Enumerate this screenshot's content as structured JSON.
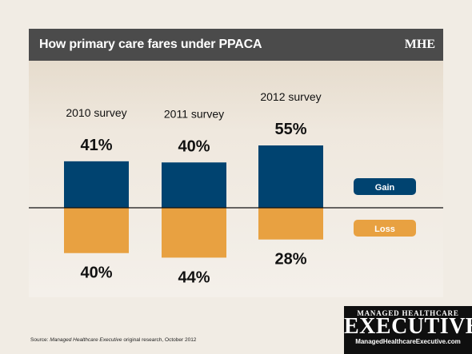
{
  "header": {
    "title": "How primary care fares under PPACA",
    "brand": "MHE"
  },
  "colors": {
    "gain": "#004370",
    "loss": "#e8a141",
    "header_bg": "#4b4b4b"
  },
  "chart_data": {
    "type": "bar",
    "title": "How primary care fares under PPACA",
    "categories": [
      "2010 survey",
      "2011 survey",
      "2012 survey"
    ],
    "series": [
      {
        "name": "Gain",
        "values": [
          41,
          40,
          55
        ]
      },
      {
        "name": "Loss",
        "values": [
          40,
          44,
          28
        ]
      }
    ],
    "value_labels": {
      "gain": [
        "41%",
        "40%",
        "55%"
      ],
      "loss": [
        "40%",
        "44%",
        "28%"
      ]
    },
    "legend": {
      "gain": "Gain",
      "loss": "Loss",
      "position": "right"
    },
    "layout": "diverging bars: gain above axis, loss below axis",
    "ylim": [
      -60,
      60
    ]
  },
  "source": {
    "prefix": "Source: ",
    "italic": "Managed Healthcare Executive",
    "suffix": " original research, October 2012"
  },
  "logo": {
    "line1": "MANAGED HEALTHCARE",
    "line2": "EXECUTIVE",
    "line3": "ManagedHealthcareExecutive.com"
  }
}
